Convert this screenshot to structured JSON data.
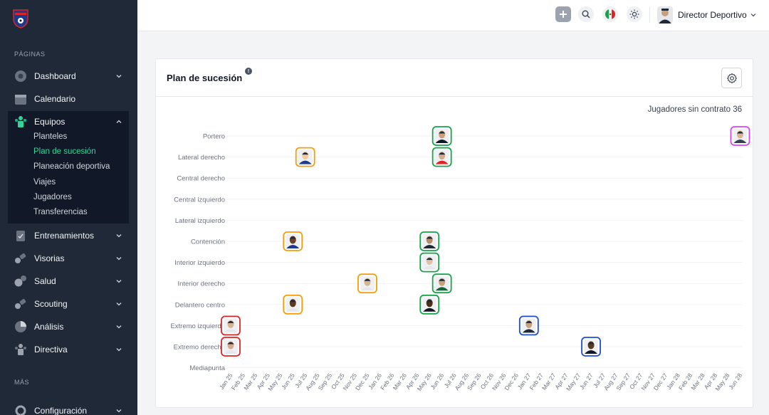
{
  "sidebar": {
    "section_pages": "PÁGINAS",
    "section_more": "MÁS",
    "items": [
      {
        "label": "Dashboard",
        "icon": "dashboard-icon"
      },
      {
        "label": "Calendario",
        "icon": "calendar-icon"
      },
      {
        "label": "Equipos",
        "icon": "teams-icon"
      },
      {
        "label": "Entrenamientos",
        "icon": "clipboard-icon"
      },
      {
        "label": "Visorias",
        "icon": "binoculars-icon"
      },
      {
        "label": "Salud",
        "icon": "health-icon"
      },
      {
        "label": "Scouting",
        "icon": "scouting-icon"
      },
      {
        "label": "Análisis",
        "icon": "analysis-icon"
      },
      {
        "label": "Directiva",
        "icon": "board-icon"
      },
      {
        "label": "Configuración",
        "icon": "settings-icon"
      }
    ],
    "equipos_sub": [
      "Planteles",
      "Plan de sucesión",
      "Planeación deportiva",
      "Viajes",
      "Jugadores",
      "Transferencias"
    ]
  },
  "topbar": {
    "user_name": "Director Deportivo"
  },
  "card": {
    "title": "Plan de sucesión",
    "info": "!",
    "no_contract_label": "Jugadores sin contrato 36"
  },
  "chart_data": {
    "type": "scatter",
    "y_categories": [
      "Portero",
      "Lateral derecho",
      "Central derecho",
      "Central izquierdo",
      "Lateral izquierdo",
      "Contención",
      "Interior izquierdo",
      "Interior derecho",
      "Delantero centro",
      "Extremo izquierdo",
      "Extremo derecho",
      "Mediapunta"
    ],
    "x_categories": [
      "Jan 25",
      "Feb 25",
      "Mar 25",
      "Apr 25",
      "May 25",
      "Jun 25",
      "Jul 25",
      "Aug 25",
      "Sep 25",
      "Oct 25",
      "Nov 25",
      "Dec 25",
      "Jan 26",
      "Feb 26",
      "Mar 26",
      "Apr 26",
      "May 26",
      "Jun 26",
      "Jul 26",
      "Aug 26",
      "Sep 26",
      "Oct 26",
      "Nov 26",
      "Dec 26",
      "Jan 27",
      "Feb 27",
      "Mar 27",
      "Apr 27",
      "May 27",
      "Jun 27",
      "Jul 27",
      "Aug 27",
      "Sep 27",
      "Oct 27",
      "Nov 27",
      "Dec 27",
      "Jan 28",
      "Feb 28",
      "Mar 28",
      "Apr 28",
      "May 28",
      "Jun 28"
    ],
    "status_colors": {
      "red": "#dc2626",
      "yellow": "#f59e0b",
      "green": "#16a34a",
      "blue": "#1d4ed8",
      "magenta": "#d946ef"
    },
    "points": [
      {
        "position": "Portero",
        "month": "Jun 26",
        "status": "green",
        "skin": "#c8a07e",
        "shirt": "#111827"
      },
      {
        "position": "Portero",
        "month": "Jun 28",
        "status": "magenta",
        "skin": "#d8b592",
        "shirt": "#374151"
      },
      {
        "position": "Lateral derecho",
        "month": "Jul 25",
        "status": "yellow",
        "skin": "#f2c9a0",
        "shirt": "#1e3a8a"
      },
      {
        "position": "Lateral derecho",
        "month": "Jun 26",
        "status": "green",
        "skin": "#d6a98a",
        "shirt": "#dc2626"
      },
      {
        "position": "Contención",
        "month": "Jun 25",
        "status": "yellow",
        "skin": "#6b4226",
        "shirt": "#1e3a8a"
      },
      {
        "position": "Contención",
        "month": "May 26",
        "status": "green",
        "skin": "#b58b6a",
        "shirt": "#1f2937"
      },
      {
        "position": "Interior izquierdo",
        "month": "May 26",
        "status": "green",
        "skin": "#e3c2a4",
        "shirt": "#e5e7eb"
      },
      {
        "position": "Interior derecho",
        "month": "Dec 25",
        "status": "yellow",
        "skin": "#d8b592",
        "shirt": "#e5e7eb"
      },
      {
        "position": "Interior derecho",
        "month": "Jun 26",
        "status": "green",
        "skin": "#c8a07e",
        "shirt": "#166534"
      },
      {
        "position": "Delantero centro",
        "month": "Jun 25",
        "status": "yellow",
        "skin": "#5a3a22",
        "shirt": "#e5e7eb"
      },
      {
        "position": "Delantero centro",
        "month": "May 26",
        "status": "green",
        "skin": "#4a2f1c",
        "shirt": "#111827"
      },
      {
        "position": "Extremo izquierdo",
        "month": "Jan 25",
        "status": "red",
        "skin": "#d8b592",
        "shirt": "#e5e7eb"
      },
      {
        "position": "Extremo izquierdo",
        "month": "Jan 27",
        "status": "blue",
        "skin": "#c8a07e",
        "shirt": "#1f2937"
      },
      {
        "position": "Extremo derecho",
        "month": "Jan 25",
        "status": "red",
        "skin": "#d6a98a",
        "shirt": "#e5e7eb"
      },
      {
        "position": "Extremo derecho",
        "month": "Jun 27",
        "status": "blue",
        "skin": "#5a3a22",
        "shirt": "#111827"
      }
    ]
  }
}
